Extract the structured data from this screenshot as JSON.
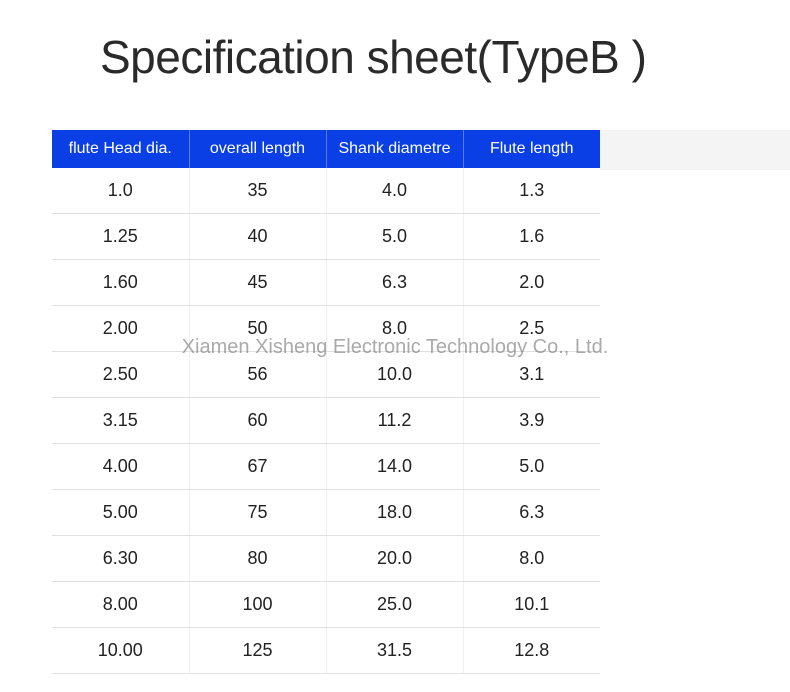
{
  "title": "Specification sheet(TypeB )",
  "watermark": "Xiamen Xisheng Electronic Technology Co., Ltd.",
  "table": {
    "type": "table",
    "header_bg": "#0a3fe6",
    "header_fg": "#ffffff",
    "cell_fg": "#222222",
    "cell_bg": "#ffffff",
    "border_color": "#e0e0e0",
    "header_fontsize": 16,
    "cell_fontsize": 18,
    "columns": [
      {
        "label": "flute Head dia.",
        "align": "center"
      },
      {
        "label": "overall length",
        "align": "center"
      },
      {
        "label": "Shank diametre",
        "align": "center"
      },
      {
        "label": "Flute length",
        "align": "center"
      }
    ],
    "rows": [
      [
        "1.0",
        "35",
        "4.0",
        "1.3"
      ],
      [
        "1.25",
        "40",
        "5.0",
        "1.6"
      ],
      [
        "1.60",
        "45",
        "6.3",
        "2.0"
      ],
      [
        "2.00",
        "50",
        "8.0",
        "2.5"
      ],
      [
        "2.50",
        "56",
        "10.0",
        "3.1"
      ],
      [
        "3.15",
        "60",
        "11.2",
        "3.9"
      ],
      [
        "4.00",
        "67",
        "14.0",
        "5.0"
      ],
      [
        "5.00",
        "75",
        "18.0",
        "6.3"
      ],
      [
        "6.30",
        "80",
        "20.0",
        "8.0"
      ],
      [
        "8.00",
        "100",
        "25.0",
        "10.1"
      ],
      [
        "10.00",
        "125",
        "31.5",
        "12.8"
      ]
    ]
  }
}
